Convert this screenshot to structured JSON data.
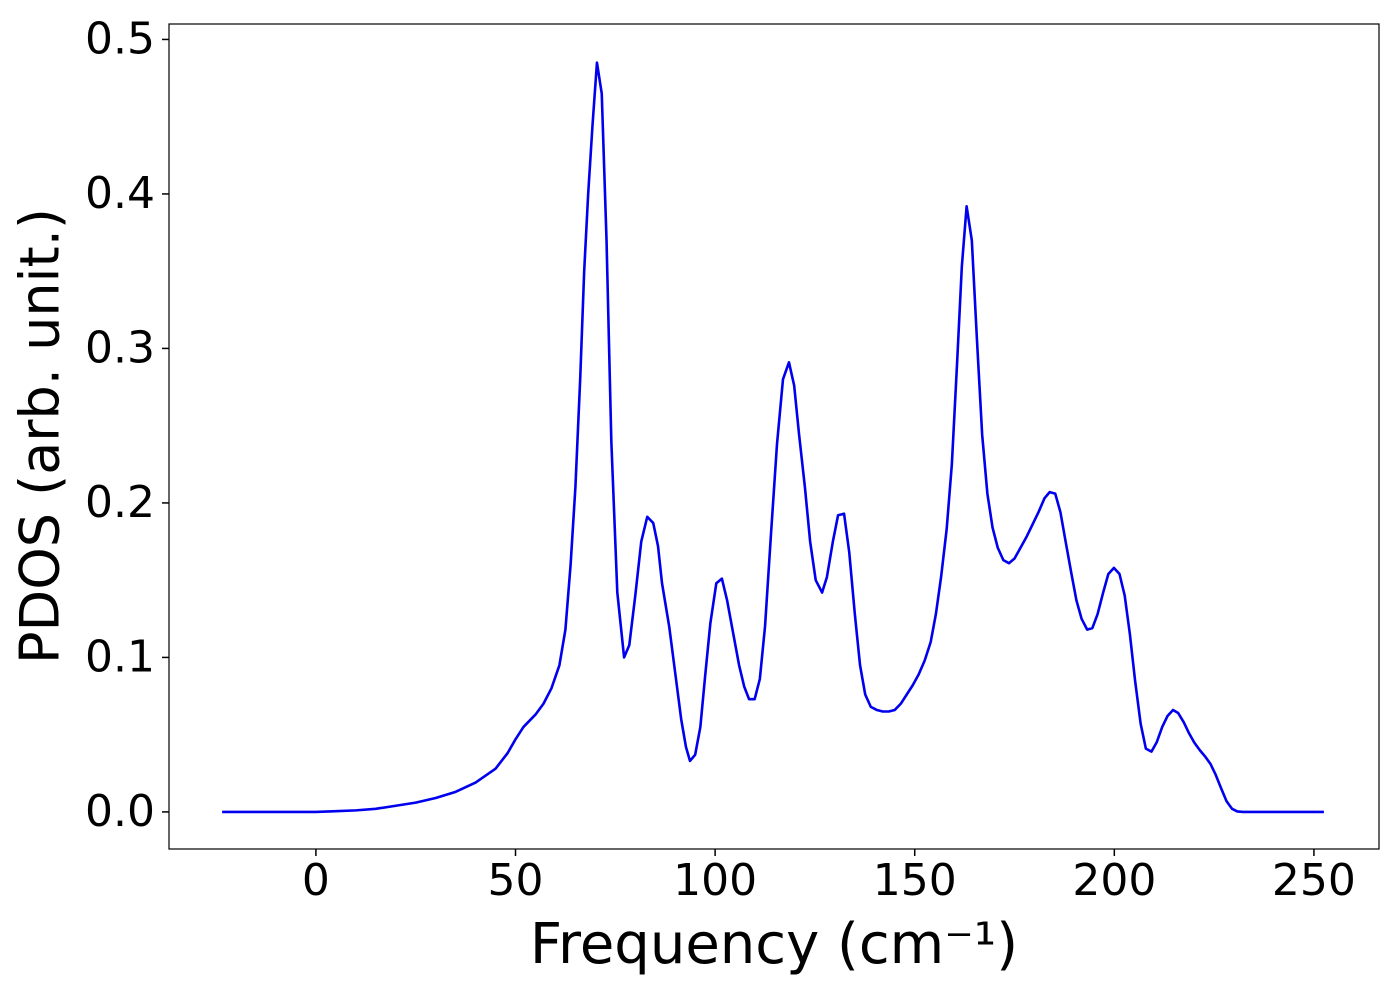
{
  "chart_data": {
    "type": "line",
    "x_label": "Frequency (cm⁻¹)",
    "y_label": "PDOS (arb. unit.)",
    "xlim": [
      -36.8,
      266.3
    ],
    "ylim": [
      -0.024,
      0.51
    ],
    "xticks": [
      0,
      50,
      100,
      150,
      200,
      250
    ],
    "yticks": [
      {
        "value": 0,
        "label": "0.0"
      },
      0.1,
      0.2,
      0.3,
      0.4,
      0.5
    ],
    "grid": false,
    "x": [
      -23.5,
      0,
      5,
      10,
      15,
      20,
      25,
      30,
      35,
      40,
      45,
      48,
      50,
      52,
      55,
      57,
      59,
      61,
      62.5,
      63.8,
      65,
      66.2,
      67.2,
      68.2,
      69.3,
      70.4,
      71.6,
      72.8,
      74,
      75.5,
      77.2,
      78.5,
      80,
      81.5,
      83,
      84.5,
      85.7,
      86.7,
      88.5,
      90,
      91.5,
      92.7,
      93.7,
      95,
      96.3,
      97.5,
      98.8,
      100.3,
      101.7,
      103,
      104.5,
      106,
      107.3,
      108.5,
      109.9,
      111.2,
      112.5,
      114,
      115.5,
      117,
      118.5,
      119.8,
      121,
      122.5,
      123.8,
      125.2,
      126.8,
      128,
      129.5,
      130.8,
      132.3,
      133.6,
      135,
      136.3,
      137.6,
      139,
      140.5,
      142,
      143.5,
      145,
      146.5,
      148,
      149.5,
      151,
      152.5,
      154,
      155.3,
      156.6,
      158,
      159.3,
      160.6,
      161.8,
      163,
      164.3,
      165.6,
      166.9,
      168.2,
      169.5,
      170.8,
      172.2,
      173.6,
      175,
      176.5,
      178,
      179.5,
      181,
      182.5,
      183.8,
      185.2,
      186.5,
      187.8,
      189.2,
      190.5,
      191.8,
      193.2,
      194.5,
      195.8,
      197.2,
      198.5,
      199.9,
      201.3,
      202.6,
      203.9,
      205.2,
      206.6,
      207.9,
      209.3,
      210.6,
      212,
      213.3,
      214.7,
      216,
      217.4,
      218.7,
      220,
      221.4,
      222.7,
      224.1,
      225.4,
      226.8,
      228.1,
      229.5,
      230.8,
      232.2,
      252.5
    ],
    "series": [
      {
        "name": "PDOS",
        "color": "#0000ee",
        "values": [
          0,
          0,
          0.0005,
          0.001,
          0.002,
          0.004,
          0.006,
          0.009,
          0.013,
          0.019,
          0.028,
          0.038,
          0.047,
          0.055,
          0.063,
          0.07,
          0.08,
          0.095,
          0.118,
          0.16,
          0.21,
          0.28,
          0.35,
          0.4,
          0.445,
          0.485,
          0.465,
          0.37,
          0.24,
          0.142,
          0.1,
          0.108,
          0.14,
          0.175,
          0.191,
          0.187,
          0.172,
          0.148,
          0.12,
          0.09,
          0.06,
          0.042,
          0.033,
          0.037,
          0.055,
          0.088,
          0.122,
          0.148,
          0.151,
          0.137,
          0.116,
          0.095,
          0.081,
          0.073,
          0.073,
          0.086,
          0.12,
          0.18,
          0.238,
          0.28,
          0.291,
          0.276,
          0.245,
          0.21,
          0.175,
          0.15,
          0.142,
          0.152,
          0.175,
          0.192,
          0.193,
          0.168,
          0.128,
          0.095,
          0.076,
          0.068,
          0.066,
          0.065,
          0.065,
          0.066,
          0.07,
          0.076,
          0.082,
          0.089,
          0.098,
          0.11,
          0.128,
          0.152,
          0.183,
          0.225,
          0.29,
          0.353,
          0.392,
          0.37,
          0.305,
          0.244,
          0.206,
          0.184,
          0.171,
          0.163,
          0.161,
          0.164,
          0.171,
          0.178,
          0.186,
          0.194,
          0.203,
          0.207,
          0.206,
          0.194,
          0.175,
          0.155,
          0.137,
          0.125,
          0.118,
          0.119,
          0.128,
          0.142,
          0.154,
          0.158,
          0.154,
          0.14,
          0.115,
          0.085,
          0.057,
          0.041,
          0.039,
          0.045,
          0.055,
          0.062,
          0.066,
          0.064,
          0.058,
          0.051,
          0.045,
          0.04,
          0.036,
          0.031,
          0.024,
          0.015,
          0.007,
          0.002,
          0.0003,
          0,
          0
        ]
      }
    ]
  }
}
